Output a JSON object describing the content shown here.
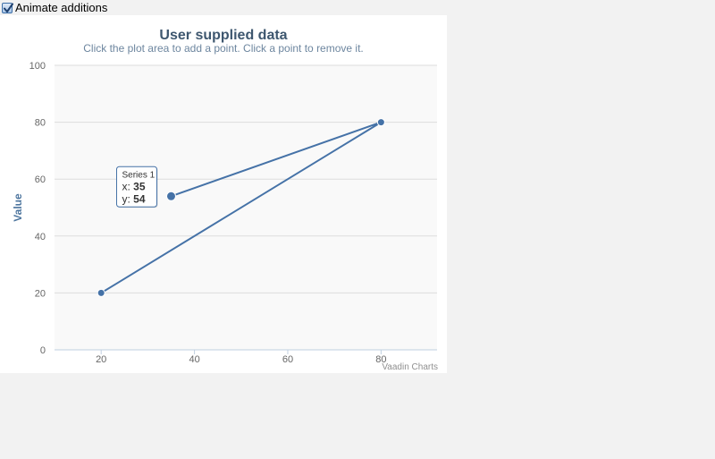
{
  "toolbar": {
    "animate_label": "Animate additions",
    "animate_checked": true
  },
  "chart_data": {
    "type": "line",
    "title": "User supplied data",
    "subtitle": "Click the plot area to add a point. Click a point to remove it.",
    "xlabel": "",
    "ylabel": "Value",
    "xlim": [
      10,
      92
    ],
    "ylim": [
      0,
      100
    ],
    "x_ticks": [
      "20",
      "40",
      "60",
      "80"
    ],
    "y_ticks": [
      "0",
      "20",
      "40",
      "60",
      "80",
      "100"
    ],
    "grid": "horizontal",
    "series": [
      {
        "name": "Series 1",
        "points": [
          {
            "x": 20,
            "y": 20
          },
          {
            "x": 80,
            "y": 80
          },
          {
            "x": 35,
            "y": 54
          }
        ]
      }
    ],
    "tooltip": {
      "series_label": "Series 1",
      "x_label": "x:",
      "x_value": "35",
      "y_label": "y:",
      "y_value": "54",
      "point_index": 2
    },
    "credits": "Vaadin Charts",
    "colors": {
      "series": "#4572a7",
      "title": "#3e576f",
      "axis_text": "#666666",
      "plot_bg": "#f9f9f9",
      "grid": "#dddddd"
    }
  }
}
